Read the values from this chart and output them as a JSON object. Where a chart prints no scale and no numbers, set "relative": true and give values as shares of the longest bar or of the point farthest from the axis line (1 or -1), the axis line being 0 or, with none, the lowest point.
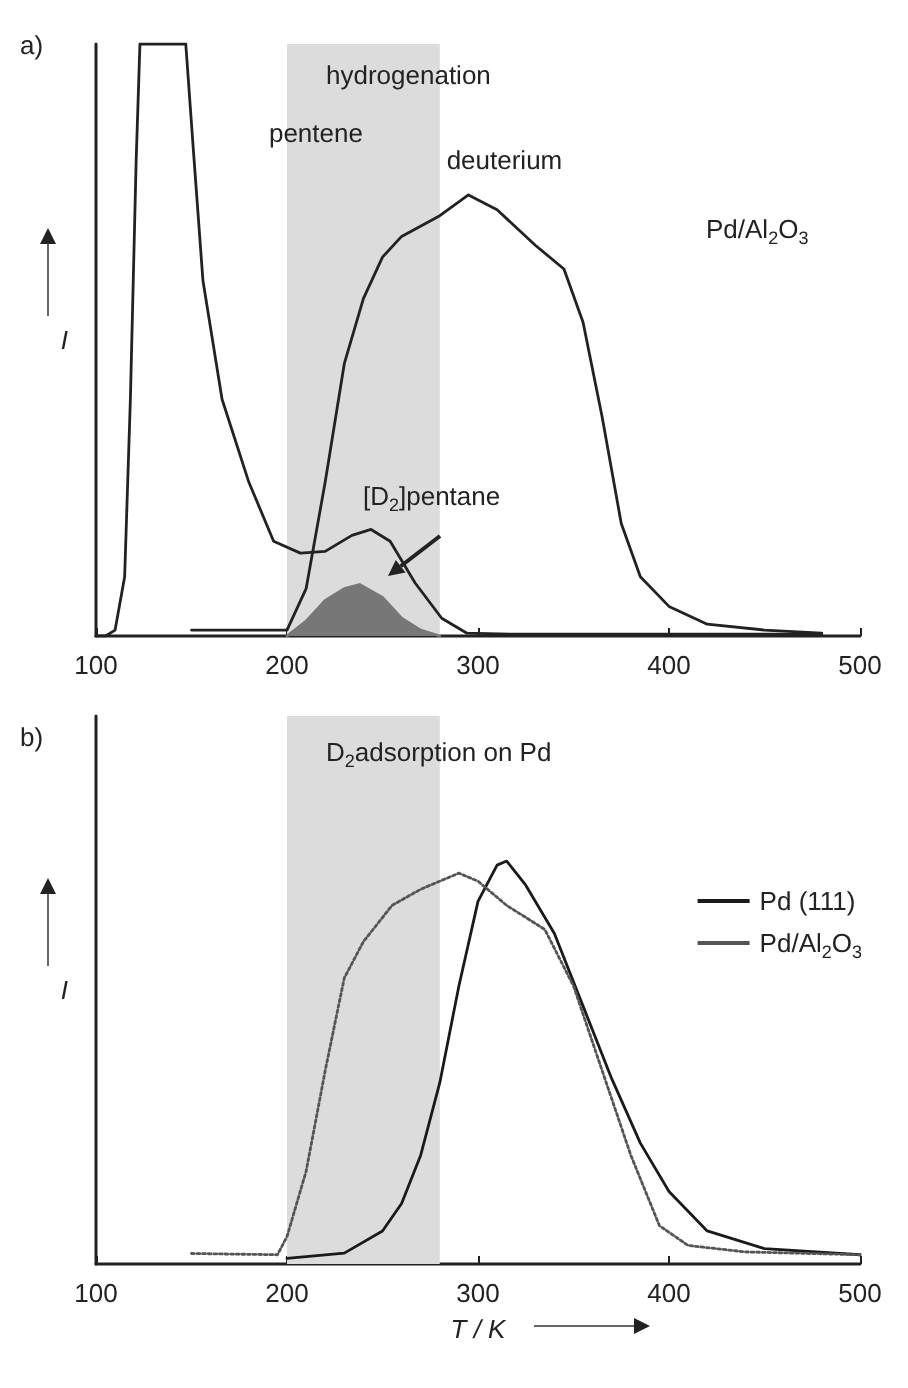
{
  "chart_data": [
    {
      "type": "line",
      "title": "hydrogenation",
      "annotations": [
        "a)",
        "Pd/Al$_{2}$O$_{3}$"
      ],
      "ylabel": "I",
      "relative": true,
      "xlim": [
        100,
        500
      ],
      "xticks": [
        100,
        200,
        300,
        400,
        500
      ],
      "tick_labels": "x",
      "legend": false,
      "grid": false,
      "marker": "none",
      "line_style": "solid",
      "bands": [
        {
          "axis": "x",
          "from": 200,
          "to": 280,
          "color": "#dcdcdc"
        }
      ],
      "series": [
        {
          "name": "pentene",
          "color": "#222222",
          "x": [
            100,
            105,
            110,
            115,
            118,
            121,
            123,
            130,
            140,
            147,
            151,
            156,
            166,
            180,
            193,
            207,
            220,
            234,
            244,
            254,
            267,
            281,
            294,
            320,
            360,
            400,
            450,
            480
          ],
          "values": [
            0,
            0,
            0.01,
            0.1,
            0.4,
            0.8,
            1,
            1,
            1,
            1,
            0.82,
            0.6,
            0.4,
            0.26,
            0.16,
            0.14,
            0.143,
            0.17,
            0.18,
            0.16,
            0.09,
            0.03,
            0.005,
            0.003,
            0.003,
            0.003,
            0.003,
            0.003
          ]
        },
        {
          "name": "deuterium",
          "color": "#222222",
          "x": [
            150,
            200,
            210,
            220,
            230,
            240,
            250,
            260,
            280,
            295,
            310,
            330,
            345,
            355,
            365,
            375,
            385,
            400,
            420,
            450,
            480
          ],
          "values": [
            0.01,
            0.01,
            0.08,
            0.26,
            0.46,
            0.57,
            0.64,
            0.675,
            0.71,
            0.745,
            0.72,
            0.66,
            0.62,
            0.53,
            0.37,
            0.19,
            0.1,
            0.05,
            0.02,
            0.01,
            0.005
          ]
        },
        {
          "name": "[D$_{2}$]pentane",
          "type": "area",
          "color": "#777777",
          "x": [
            200,
            210,
            220,
            230,
            238,
            250,
            260,
            270,
            280
          ],
          "values": [
            0,
            0.025,
            0.06,
            0.08,
            0.087,
            0.065,
            0.03,
            0.01,
            0
          ]
        }
      ]
    },
    {
      "type": "line",
      "title": "D$_{2}$adsorption on Pd",
      "annotations": [
        "b)"
      ],
      "xlabel": "T / K",
      "ylabel": "I",
      "relative": true,
      "xlim": [
        100,
        500
      ],
      "xticks": [
        100,
        200,
        300,
        400,
        500
      ],
      "tick_labels": "x",
      "legend": "top right",
      "grid": false,
      "marker": "none",
      "bands": [
        {
          "axis": "x",
          "from": 200,
          "to": 280,
          "color": "#dcdcdc"
        }
      ],
      "series": [
        {
          "name": "Pd (111)",
          "color": "#1a1a1a",
          "line_style": "solid",
          "x": [
            200,
            230,
            250,
            260,
            270,
            280,
            290,
            300,
            310,
            315,
            325,
            340,
            355,
            370,
            385,
            400,
            420,
            450,
            500
          ],
          "values": [
            0.014,
            0.027,
            0.082,
            0.15,
            0.27,
            0.45,
            0.69,
            0.9,
            0.99,
            1,
            0.94,
            0.82,
            0.64,
            0.46,
            0.3,
            0.18,
            0.082,
            0.038,
            0.023
          ]
        },
        {
          "name": "Pd/Al$_{2}$O$_{3}$",
          "color": "#555555",
          "line_style": "dotted",
          "x": [
            150,
            195,
            200,
            210,
            220,
            230,
            240,
            255,
            270,
            290,
            300,
            315,
            335,
            350,
            365,
            380,
            395,
            410,
            440,
            500
          ],
          "values": [
            0.026,
            0.023,
            0.068,
            0.23,
            0.48,
            0.71,
            0.8,
            0.89,
            0.93,
            0.97,
            0.95,
            0.89,
            0.83,
            0.69,
            0.48,
            0.27,
            0.095,
            0.046,
            0.03,
            0.023
          ]
        }
      ]
    }
  ]
}
